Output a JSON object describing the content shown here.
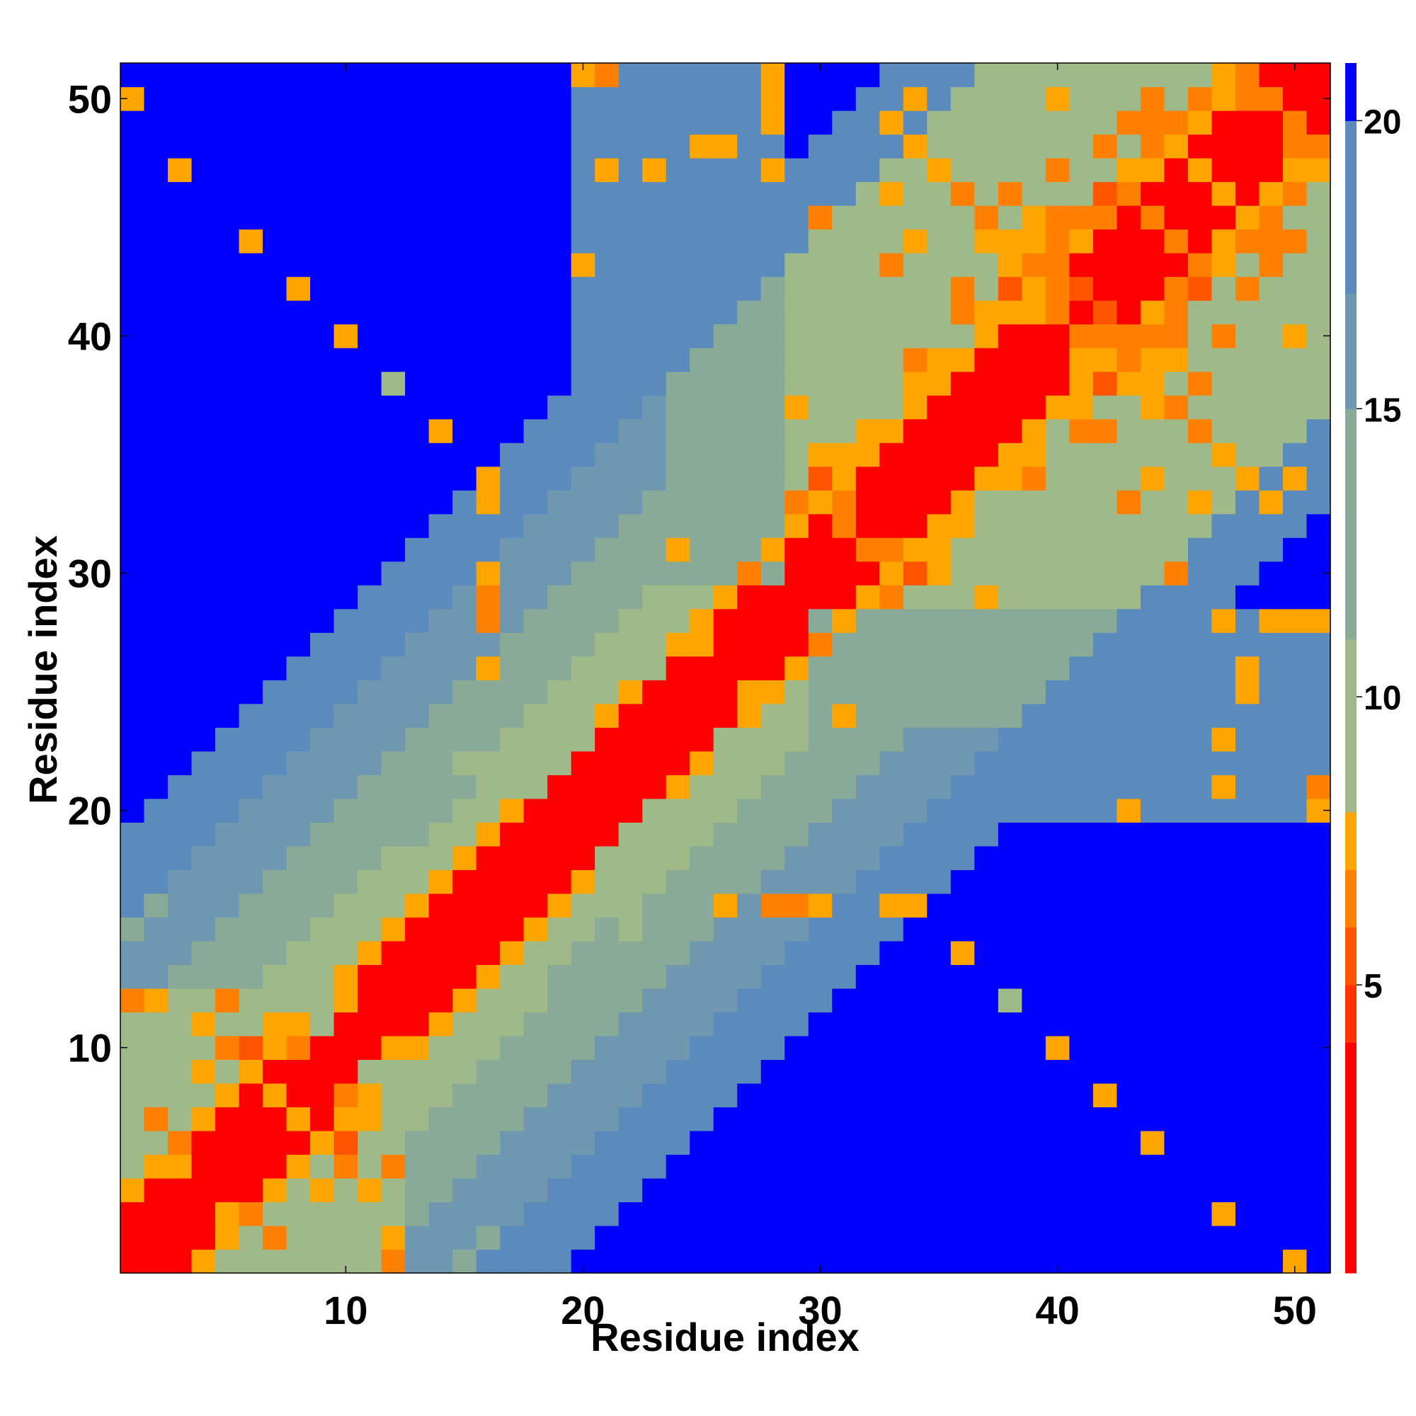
{
  "chart_data": {
    "type": "heatmap",
    "title": "",
    "xlabel": "Residue index",
    "ylabel": "Residue index",
    "n_residues": 51,
    "xlim": [
      0.5,
      51.5
    ],
    "ylim": [
      0.5,
      51.5
    ],
    "x_ticks": [
      10,
      20,
      30,
      40,
      50
    ],
    "y_ticks": [
      10,
      20,
      30,
      40,
      50
    ],
    "colorbar": {
      "ticks": [
        5,
        10,
        15,
        20
      ],
      "range": [
        0,
        21
      ],
      "bands": [
        {
          "from": 0,
          "to": 4,
          "color": "#ff0000"
        },
        {
          "from": 4,
          "to": 5,
          "color": "#ff3300"
        },
        {
          "from": 5,
          "to": 6,
          "color": "#ff5500"
        },
        {
          "from": 6,
          "to": 7,
          "color": "#ff8000"
        },
        {
          "from": 7,
          "to": 8,
          "color": "#ffa500"
        },
        {
          "from": 8,
          "to": 11,
          "color": "#9fba88"
        },
        {
          "from": 11,
          "to": 15,
          "color": "#8aaa98"
        },
        {
          "from": 15,
          "to": 17,
          "color": "#6f98b0"
        },
        {
          "from": 17,
          "to": 20,
          "color": "#5b8bbd"
        },
        {
          "from": 20,
          "to": 21,
          "color": "#0000ff"
        }
      ]
    },
    "colorscale_note": "contact distance map; band of value ~21+ rendered pure blue",
    "off_diagonal_cells": [
      [
        3,
        13,
        12
      ],
      [
        4,
        14,
        12
      ],
      [
        1,
        15,
        13
      ],
      [
        2,
        16,
        12
      ],
      [
        5,
        17,
        16
      ],
      [
        1,
        12,
        6
      ],
      [
        2,
        12,
        7
      ],
      [
        5,
        12,
        6
      ],
      [
        4,
        11,
        7
      ],
      [
        5,
        10,
        6
      ],
      [
        4,
        9,
        7
      ],
      [
        6,
        9,
        7
      ],
      [
        8,
        10,
        6
      ],
      [
        9,
        12,
        9
      ],
      [
        9,
        11,
        8
      ],
      [
        10,
        12,
        7
      ],
      [
        3,
        5,
        7
      ],
      [
        3,
        6,
        6
      ],
      [
        2,
        7,
        6
      ],
      [
        7,
        8,
        7
      ],
      [
        10,
        6,
        5
      ],
      [
        11,
        7,
        7
      ],
      [
        12,
        8,
        8
      ],
      [
        4,
        8,
        8
      ],
      [
        13,
        19,
        14
      ],
      [
        14,
        20,
        14
      ],
      [
        15,
        21,
        14
      ],
      [
        16,
        26,
        7
      ],
      [
        16,
        28,
        6
      ],
      [
        16,
        30,
        7
      ],
      [
        16,
        33,
        7
      ],
      [
        16,
        34,
        7
      ],
      [
        18,
        21,
        10
      ],
      [
        19,
        22,
        10
      ],
      [
        20,
        23,
        9
      ],
      [
        15,
        22,
        9
      ],
      [
        17,
        23,
        10
      ],
      [
        23,
        26,
        9
      ],
      [
        24,
        28,
        8
      ],
      [
        25,
        27,
        7
      ],
      [
        26,
        29,
        7
      ],
      [
        27,
        30,
        6
      ],
      [
        28,
        31,
        7
      ],
      [
        29,
        33,
        6
      ],
      [
        30,
        34,
        5
      ],
      [
        31,
        35,
        7
      ],
      [
        32,
        36,
        7
      ],
      [
        33,
        37,
        8
      ],
      [
        34,
        38,
        7
      ],
      [
        35,
        39,
        7
      ],
      [
        36,
        40,
        8
      ],
      [
        37,
        41,
        7
      ],
      [
        38,
        42,
        7
      ],
      [
        39,
        43,
        6
      ],
      [
        40,
        44,
        7
      ],
      [
        41,
        45,
        6
      ],
      [
        42,
        46,
        5
      ],
      [
        43,
        47,
        7
      ],
      [
        44,
        48,
        6
      ],
      [
        45,
        49,
        6
      ],
      [
        46,
        50,
        6
      ],
      [
        47,
        51,
        7
      ],
      [
        48,
        51,
        6
      ],
      [
        49,
        50,
        6
      ],
      [
        1,
        50,
        7
      ],
      [
        3,
        47,
        7
      ],
      [
        6,
        44,
        7
      ],
      [
        8,
        42,
        7
      ],
      [
        10,
        40,
        7
      ],
      [
        12,
        38,
        8
      ],
      [
        14,
        36,
        7
      ],
      [
        16,
        34,
        7
      ],
      [
        21,
        47,
        7
      ],
      [
        26,
        48,
        7
      ],
      [
        20,
        51,
        7
      ],
      [
        28,
        51,
        7
      ],
      [
        21,
        51,
        6
      ],
      [
        23,
        47,
        7
      ],
      [
        20,
        43,
        7
      ],
      [
        33,
        43,
        6
      ],
      [
        34,
        48,
        7
      ],
      [
        36,
        46,
        6
      ],
      [
        38,
        44,
        7
      ],
      [
        40,
        47,
        7
      ],
      [
        42,
        45,
        6
      ],
      [
        46,
        38,
        6
      ],
      [
        42,
        36,
        6
      ],
      [
        44,
        34,
        7
      ],
      [
        46,
        33,
        7
      ],
      [
        47,
        28,
        7
      ],
      [
        48,
        25,
        7
      ],
      [
        45,
        30,
        6
      ],
      [
        43,
        40,
        6
      ],
      [
        41,
        42,
        5
      ],
      [
        40,
        44,
        6
      ],
      [
        40,
        45,
        6
      ],
      [
        37,
        40,
        7
      ],
      [
        36,
        41,
        6
      ],
      [
        35,
        39,
        7
      ],
      [
        33,
        30,
        7
      ],
      [
        32,
        31,
        6
      ],
      [
        31,
        33,
        6
      ],
      [
        30,
        35,
        7
      ],
      [
        29,
        37,
        7
      ],
      [
        42,
        40,
        6
      ],
      [
        42,
        38,
        5
      ],
      [
        41,
        39,
        7
      ],
      [
        40,
        41,
        6
      ],
      [
        39,
        34,
        6
      ],
      [
        39,
        45,
        6
      ],
      [
        40,
        50,
        7
      ],
      [
        45,
        44,
        6
      ],
      [
        48,
        42,
        6
      ],
      [
        49,
        44,
        6
      ],
      [
        50,
        48,
        6
      ],
      [
        47,
        46,
        7
      ],
      [
        51,
        47,
        7
      ],
      [
        44,
        50,
        6
      ],
      [
        43,
        49,
        6
      ],
      [
        46,
        47,
        7
      ],
      [
        50,
        49,
        6
      ],
      [
        33,
        16,
        7
      ],
      [
        30,
        16,
        7
      ],
      [
        29,
        16,
        6
      ],
      [
        26,
        16,
        7
      ],
      [
        31,
        24,
        7
      ],
      [
        34,
        16,
        7
      ],
      [
        35,
        47,
        7
      ],
      [
        37,
        45,
        6
      ],
      [
        37,
        44,
        7
      ],
      [
        38,
        43,
        7
      ],
      [
        40,
        41,
        6
      ],
      [
        44,
        41,
        7
      ],
      [
        46,
        43,
        6
      ],
      [
        45,
        39,
        7
      ],
      [
        44,
        39,
        7
      ],
      [
        43,
        33,
        6
      ],
      [
        40,
        47,
        6
      ],
      [
        33,
        49,
        7
      ],
      [
        34,
        50,
        7
      ],
      [
        28,
        49,
        7
      ],
      [
        28,
        50,
        7
      ]
    ]
  }
}
